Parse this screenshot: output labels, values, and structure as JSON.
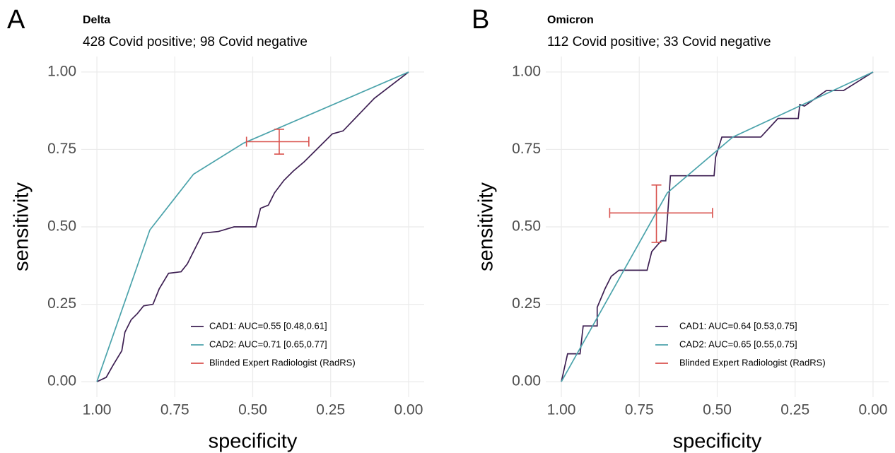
{
  "chart_data": [
    {
      "type": "line",
      "tag": "A",
      "title": "Delta",
      "subtitle": "428 Covid positive; 98 Covid negative",
      "x_label": "specificity",
      "y_label": "sensitivity",
      "xlim": [
        1.05,
        -0.05
      ],
      "ylim": [
        -0.05,
        1.05
      ],
      "xticks": [
        {
          "value": 1,
          "label": "1.00"
        },
        {
          "value": 0.75,
          "label": "0.75"
        },
        {
          "value": 0.5,
          "label": "0.50"
        },
        {
          "value": 0.25,
          "label": "0.25"
        },
        {
          "value": 0,
          "label": "0.00"
        }
      ],
      "yticks": [
        {
          "value": 0,
          "label": "0.00"
        },
        {
          "value": 0.25,
          "label": "0.25"
        },
        {
          "value": 0.5,
          "label": "0.50"
        },
        {
          "value": 0.75,
          "label": "0.75"
        },
        {
          "value": 1,
          "label": "1.00"
        }
      ],
      "grid": true,
      "legend": "bottom-right",
      "series": [
        {
          "name": "CAD1: AUC=0.55 [0.48,0.61]",
          "color": "#3d1f52",
          "x": [
            1,
            0.97,
            0.95,
            0.92,
            0.91,
            0.89,
            0.87,
            0.85,
            0.82,
            0.8,
            0.785,
            0.77,
            0.73,
            0.71,
            0.69,
            0.66,
            0.61,
            0.56,
            0.49,
            0.475,
            0.45,
            0.43,
            0.4,
            0.37,
            0.335,
            0.29,
            0.245,
            0.21,
            0.11,
            0
          ],
          "values": [
            0,
            0.014,
            0.05,
            0.1,
            0.16,
            0.2,
            0.22,
            0.245,
            0.25,
            0.3,
            0.325,
            0.35,
            0.355,
            0.38,
            0.42,
            0.48,
            0.485,
            0.5,
            0.5,
            0.56,
            0.57,
            0.61,
            0.65,
            0.68,
            0.71,
            0.755,
            0.8,
            0.81,
            0.915,
            1
          ]
        },
        {
          "name": "CAD2: AUC=0.71 [0.65,0.77]",
          "color": "#4ba3ab",
          "x": [
            1,
            0.83,
            0.69,
            0.53,
            0
          ],
          "values": [
            0,
            0.49,
            0.67,
            0.77,
            1
          ]
        },
        {
          "name": "Blinded Expert Radiologist (RadRS)",
          "color": "#d9534f",
          "type": "errorbar",
          "x": [
            0.415
          ],
          "values": [
            0.775
          ],
          "x_interval": [
            0.52,
            0.32
          ],
          "y_interval": [
            0.735,
            0.815
          ]
        }
      ]
    },
    {
      "type": "line",
      "tag": "B",
      "title": "Omicron",
      "subtitle": "112 Covid positive; 33 Covid negative",
      "x_label": "specificity",
      "y_label": "sensitivity",
      "xlim": [
        1.05,
        -0.05
      ],
      "ylim": [
        -0.05,
        1.05
      ],
      "xticks": [
        {
          "value": 1,
          "label": "1.00"
        },
        {
          "value": 0.75,
          "label": "0.75"
        },
        {
          "value": 0.5,
          "label": "0.50"
        },
        {
          "value": 0.25,
          "label": "0.25"
        },
        {
          "value": 0,
          "label": "0.00"
        }
      ],
      "yticks": [
        {
          "value": 0,
          "label": "0.00"
        },
        {
          "value": 0.25,
          "label": "0.25"
        },
        {
          "value": 0.5,
          "label": "0.50"
        },
        {
          "value": 0.75,
          "label": "0.75"
        },
        {
          "value": 1,
          "label": "1.00"
        }
      ],
      "grid": true,
      "legend": "bottom-right",
      "series": [
        {
          "name": "CAD1: AUC=0.64 [0.53,0.75]",
          "color": "#3d1f52",
          "x": [
            1,
            0.98,
            0.94,
            0.93,
            0.885,
            0.885,
            0.86,
            0.84,
            0.815,
            0.725,
            0.71,
            0.68,
            0.665,
            0.65,
            0.51,
            0.505,
            0.485,
            0.36,
            0.305,
            0.24,
            0.235,
            0.22,
            0.15,
            0.095,
            0
          ],
          "values": [
            0,
            0.09,
            0.09,
            0.18,
            0.18,
            0.24,
            0.3,
            0.34,
            0.36,
            0.36,
            0.42,
            0.455,
            0.455,
            0.665,
            0.665,
            0.725,
            0.79,
            0.79,
            0.85,
            0.85,
            0.895,
            0.89,
            0.94,
            0.94,
            1
          ]
        },
        {
          "name": "CAD2: AUC=0.65 [0.55,0.75]",
          "color": "#4ba3ab",
          "x": [
            1,
            0.66,
            0.45,
            0
          ],
          "values": [
            0,
            0.61,
            0.79,
            1
          ]
        },
        {
          "name": "Blinded Expert Radiologist (RadRS)",
          "color": "#d9534f",
          "type": "errorbar",
          "x": [
            0.695
          ],
          "values": [
            0.545
          ],
          "x_interval": [
            0.845,
            0.515
          ],
          "y_interval": [
            0.45,
            0.635
          ]
        }
      ]
    }
  ]
}
